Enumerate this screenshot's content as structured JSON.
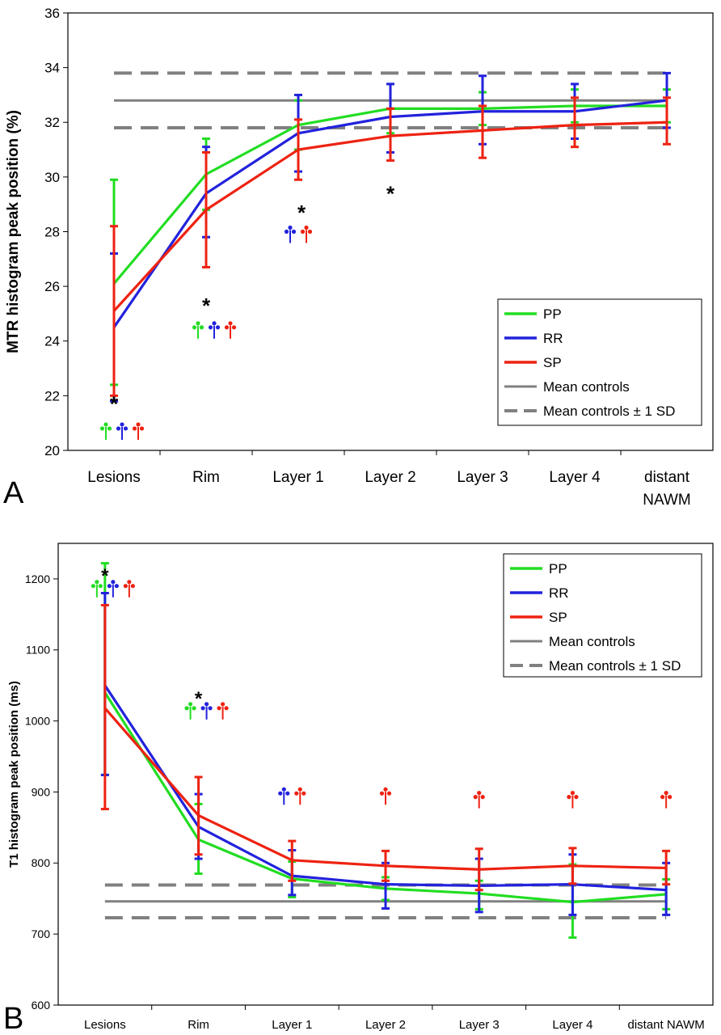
{
  "colors": {
    "PP": "#22dd22",
    "RR": "#2222dd",
    "SP": "#ee2211",
    "controls": "#808080"
  },
  "chart_data": [
    {
      "type": "line",
      "panel_label": "A",
      "ylabel": "MTR histogram peak position (%)",
      "xlabel": "",
      "categories": [
        "Lesions",
        "Rim",
        "Layer 1",
        "Layer 2",
        "Layer 3",
        "Layer 4",
        "distant NAWM"
      ],
      "ylim": [
        20,
        36
      ],
      "yticks": [
        "20",
        "22",
        "24",
        "26",
        "28",
        "30",
        "32",
        "34",
        "36"
      ],
      "grid": false,
      "legend_position": "bottom-right",
      "legend": [
        "PP",
        "RR",
        "SP",
        "Mean controls",
        "Mean controls ± 1 SD"
      ],
      "series": [
        {
          "name": "PP",
          "values": [
            26.1,
            30.1,
            31.9,
            32.5,
            32.5,
            32.6,
            32.6
          ],
          "err_low": [
            22.4,
            28.8,
            31.0,
            31.6,
            31.9,
            32.0,
            32.0
          ],
          "err_high": [
            29.9,
            31.4,
            32.8,
            33.4,
            33.1,
            33.2,
            33.2
          ]
        },
        {
          "name": "RR",
          "values": [
            24.5,
            29.4,
            31.6,
            32.2,
            32.4,
            32.4,
            32.8
          ],
          "err_low": [
            21.8,
            27.8,
            30.2,
            30.9,
            31.2,
            31.4,
            31.8
          ],
          "err_high": [
            27.2,
            31.1,
            33.0,
            33.4,
            33.7,
            33.4,
            33.8
          ]
        },
        {
          "name": "SP",
          "values": [
            25.1,
            28.8,
            31.0,
            31.5,
            31.7,
            31.9,
            32.0
          ],
          "err_low": [
            22.0,
            26.7,
            29.9,
            30.6,
            30.7,
            31.1,
            31.2
          ],
          "err_high": [
            28.2,
            30.9,
            32.1,
            32.5,
            32.6,
            32.9,
            32.9
          ]
        },
        {
          "name": "Mean controls",
          "values": [
            32.8,
            32.8,
            32.8,
            32.8,
            32.8,
            32.8,
            32.8
          ]
        },
        {
          "name": "Mean controls ± 1 SD",
          "upper": [
            33.8,
            33.8,
            33.8,
            33.8,
            33.8,
            33.8,
            33.8
          ],
          "lower": [
            31.8,
            31.8,
            31.8,
            31.8,
            31.8,
            31.8,
            31.8
          ]
        }
      ],
      "annotations": [
        {
          "text": "*",
          "x": "Lesions",
          "y": 21.7,
          "markers": [
            "PP",
            "RR",
            "SP"
          ],
          "marker_y": 20.8
        },
        {
          "text": "*",
          "x": "Rim",
          "y": 25.3,
          "markers": [
            "PP",
            "RR",
            "SP"
          ],
          "marker_y": 24.5
        },
        {
          "text": "*",
          "x": "Layer 1",
          "y": 28.7,
          "markers": [
            "RR",
            "SP"
          ],
          "marker_y": 28.0
        },
        {
          "text": "*",
          "x": "Layer 2",
          "y": 29.4,
          "markers": [],
          "marker_y": 0
        }
      ]
    },
    {
      "type": "line",
      "panel_label": "B",
      "ylabel": "T1 histogram peak position (ms)",
      "xlabel": "",
      "categories": [
        "Lesions",
        "Rim",
        "Layer 1",
        "Layer 2",
        "Layer 3",
        "Layer 4",
        "distant NAWM"
      ],
      "ylim": [
        600,
        1250
      ],
      "yticks": [
        "600",
        "700",
        "800",
        "900",
        "1000",
        "1100",
        "1200"
      ],
      "grid": false,
      "legend_position": "top-right",
      "legend": [
        "PP",
        "RR",
        "SP",
        "Mean controls",
        "Mean controls ± 1 SD"
      ],
      "series": [
        {
          "name": "PP",
          "values": [
            1040,
            833,
            778,
            764,
            757,
            745,
            756
          ],
          "err_low": [
            924,
            785,
            752,
            748,
            735,
            695,
            735
          ],
          "err_high": [
            1222,
            883,
            802,
            780,
            775,
            798,
            777
          ]
        },
        {
          "name": "RR",
          "values": [
            1050,
            851,
            782,
            770,
            768,
            770,
            762
          ],
          "err_low": [
            924,
            806,
            755,
            736,
            731,
            727,
            727
          ],
          "err_high": [
            1180,
            897,
            818,
            800,
            806,
            812,
            800
          ]
        },
        {
          "name": "SP",
          "values": [
            1018,
            867,
            804,
            796,
            791,
            796,
            793
          ],
          "err_low": [
            876,
            812,
            775,
            775,
            762,
            771,
            770
          ],
          "err_high": [
            1163,
            921,
            831,
            817,
            820,
            821,
            817
          ]
        },
        {
          "name": "Mean controls",
          "values": [
            746,
            746,
            746,
            746,
            746,
            746,
            746
          ]
        },
        {
          "name": "Mean controls ± 1 SD",
          "upper": [
            769,
            769,
            769,
            769,
            769,
            769,
            769
          ],
          "lower": [
            723,
            723,
            723,
            723,
            723,
            723,
            723
          ]
        }
      ],
      "annotations": [
        {
          "text": "*",
          "x": "Lesions",
          "y": 1205,
          "markers": [
            "PP",
            "RR",
            "SP"
          ],
          "marker_y": 1190
        },
        {
          "text": "*",
          "x": "Rim",
          "y": 1032,
          "markers": [
            "PP",
            "RR",
            "SP"
          ],
          "marker_y": 1018
        },
        {
          "text": "",
          "x": "Layer 1",
          "y": 0,
          "markers": [
            "RR",
            "SP"
          ],
          "marker_y": 898
        },
        {
          "text": "",
          "x": "Layer 2",
          "y": 0,
          "markers": [
            "SP"
          ],
          "marker_y": 898
        },
        {
          "text": "",
          "x": "Layer 3",
          "y": 0,
          "markers": [
            "SP"
          ],
          "marker_y": 893
        },
        {
          "text": "",
          "x": "Layer 4",
          "y": 0,
          "markers": [
            "SP"
          ],
          "marker_y": 893
        },
        {
          "text": "",
          "x": "distant NAWM",
          "y": 0,
          "markers": [
            "SP"
          ],
          "marker_y": 893
        }
      ]
    }
  ]
}
